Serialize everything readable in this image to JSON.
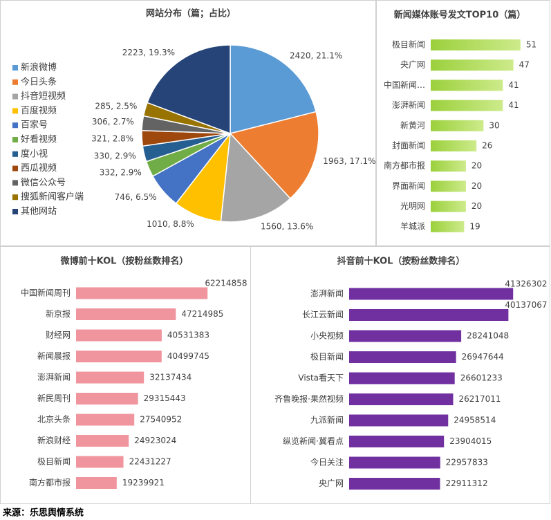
{
  "chart_data": [
    {
      "type": "pie",
      "title": "网站分布（篇；占比）",
      "categories": [
        "新浪微博",
        "今日头条",
        "抖音短视频",
        "百度视频",
        "百家号",
        "好看视频",
        "度小视",
        "西瓜视频",
        "微信公众号",
        "搜狐新闻客户端",
        "其他网站"
      ],
      "values": [
        2420,
        1963,
        1560,
        1010,
        746,
        332,
        330,
        321,
        306,
        285,
        2223
      ],
      "value_labels": [
        "2420, 21.1%",
        "1963, 17.1%",
        "1560, 13.6%",
        "1010, 8.8%",
        "746, 6.5%",
        "332, 2.9%",
        "330, 2.9%",
        "321, 2.8%",
        "306, 2.7%",
        "285, 2.5%",
        "2223, 19.3%"
      ],
      "colors": [
        "#5b9bd5",
        "#ed7d31",
        "#a5a5a5",
        "#ffc000",
        "#4472c4",
        "#70ad47",
        "#255e91",
        "#9e480e",
        "#636363",
        "#997300",
        "#264478"
      ],
      "legend": "left"
    },
    {
      "type": "hbar",
      "title": "新闻媒体账号发文TOP10（篇）",
      "categories": [
        "极目新闻",
        "央广网",
        "中国新闻…",
        "澎湃新闻",
        "新黄河",
        "封面新闻",
        "南方都市报",
        "界面新闻",
        "光明网",
        "羊城派"
      ],
      "values": [
        51,
        47,
        41,
        41,
        30,
        26,
        20,
        20,
        20,
        19
      ],
      "color": "#9bd03c",
      "xlim": [
        0,
        55
      ]
    },
    {
      "type": "hbar",
      "title": "微博前十KOL（按粉丝数排名）",
      "categories": [
        "中国新闻周刊",
        "新京报",
        "财经网",
        "新闻晨报",
        "澎湃新闻",
        "新民周刊",
        "北京头条",
        "新浪财经",
        "极目新闻",
        "南方都市报"
      ],
      "values": [
        62214858,
        47214985,
        40531383,
        40499745,
        32137434,
        29315443,
        27540952,
        24923024,
        22431227,
        19239921
      ],
      "color": "#f0959e",
      "xlim": [
        0,
        70000000
      ]
    },
    {
      "type": "hbar",
      "title": "抖音前十KOL（按粉丝数排名）",
      "categories": [
        "澎湃新闻",
        "长江云新闻",
        "小央视频",
        "极目新闻",
        "Vista看天下",
        "齐鲁晚报·果然视频",
        "九派新闻",
        "纵览新闻·冀看点",
        "今日关注",
        "央广网"
      ],
      "values": [
        41326302,
        40137067,
        28241048,
        26947644,
        26601233,
        26217011,
        24958514,
        23904015,
        22957833,
        22911312
      ],
      "color": "#7030a0",
      "xlim": [
        0,
        50000000
      ]
    }
  ],
  "source": "来源：乐思舆情系统"
}
